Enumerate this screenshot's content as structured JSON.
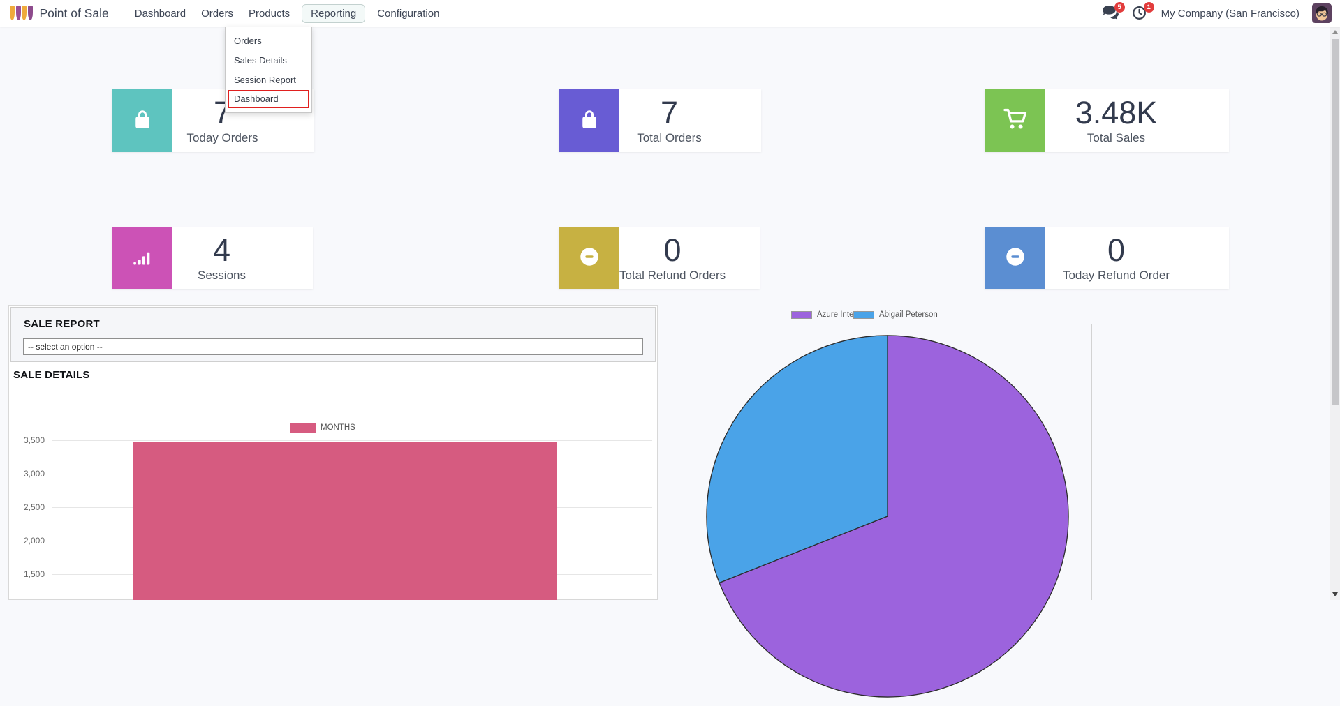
{
  "nav": {
    "brand": "Point of Sale",
    "items": [
      "Dashboard",
      "Orders",
      "Products",
      "Reporting",
      "Configuration"
    ],
    "active_item": "Reporting",
    "messages_badge": "5",
    "activities_badge": "1",
    "badge_color": "#e23c3c",
    "company": "My Company (San Francisco)"
  },
  "reporting_menu": {
    "items": [
      "Orders",
      "Sales Details",
      "Session Report",
      "Dashboard"
    ],
    "highlighted_item": "Dashboard",
    "highlight_color": "#e0201f"
  },
  "kpis": [
    {
      "value": "7",
      "label": "Today Orders",
      "color": "#5ec4bf",
      "icon": "shopping-bag"
    },
    {
      "value": "7",
      "label": "Total Orders",
      "color": "#685cd4",
      "icon": "shopping-bag"
    },
    {
      "value": "3.48K",
      "label": "Total Sales",
      "color": "#7cc453",
      "icon": "shopping-cart"
    },
    {
      "value": "4",
      "label": "Sessions",
      "color": "#cc52b6",
      "icon": "signal-bars"
    },
    {
      "value": "0",
      "label": "Total Refund Orders",
      "color": "#c7b142",
      "icon": "minus-circle"
    },
    {
      "value": "0",
      "label": "Today Refund Order",
      "color": "#5b8ed2",
      "icon": "minus-circle"
    }
  ],
  "sale_report": {
    "title": "SALE REPORT",
    "select_value": "-- select an option --"
  },
  "sale_details_title": "SALE DETAILS",
  "chart_data": [
    {
      "type": "bar",
      "title": "SALE DETAILS",
      "categories": [
        "MONTHS"
      ],
      "values": [
        3480
      ],
      "series_label": "MONTHS",
      "bar_color": "#d65b80",
      "y_ticks": [
        3500,
        3000,
        2500,
        2000,
        1500
      ],
      "y_tick_labels": [
        "3,500",
        "3,000",
        "2,500",
        "2,000",
        "1,500"
      ],
      "xlabel": "",
      "ylabel": "",
      "grid": true,
      "legend_position": "top"
    },
    {
      "type": "pie",
      "slices": [
        {
          "label": "Azure Interior",
          "value": 69,
          "color": "#9c63dd"
        },
        {
          "label": "Abigail Peterson",
          "value": 31,
          "color": "#4aa3e8"
        }
      ],
      "unit": "percent",
      "legend_position": "top"
    }
  ]
}
